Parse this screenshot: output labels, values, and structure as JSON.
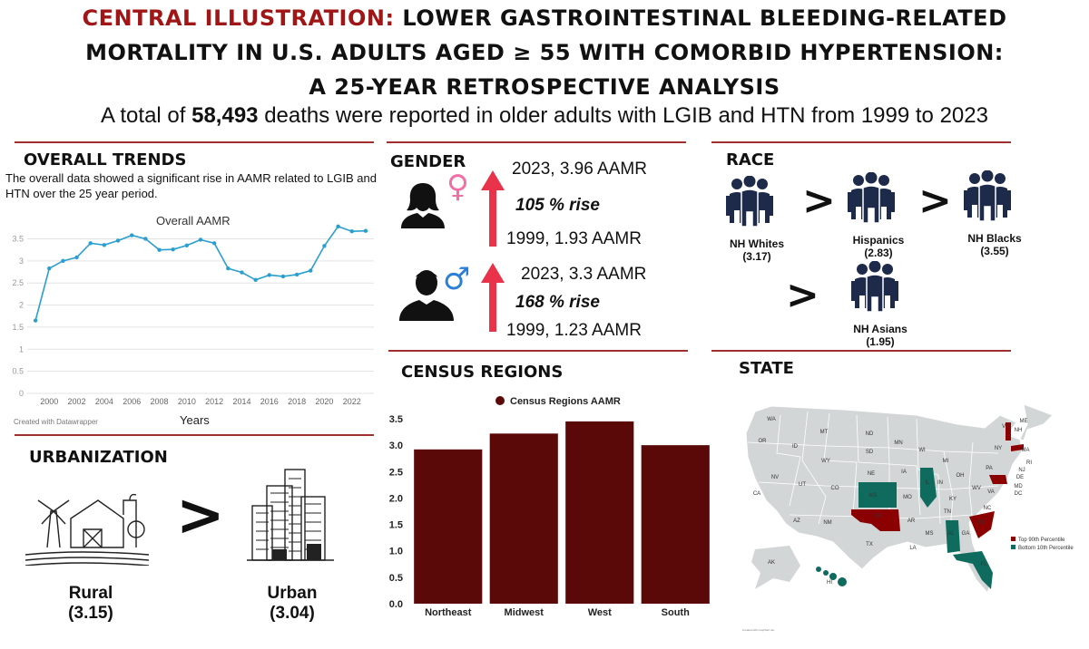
{
  "header": {
    "title_accent": "Central Illustration:",
    "title_line1": "Lower Gastrointestinal Bleeding-Related",
    "title_line2": "Mortality in U.S. Adults Aged ≥ 55 with Comorbid Hypertension:",
    "title_line3": "A 25-Year Retrospective Analysis",
    "subtitle_pre": "A total of",
    "subtitle_count": "58,493",
    "subtitle_post": "deaths were reported in older adults with LGIB and HTN from 1999 to 2023"
  },
  "overall": {
    "section_title": "OVERALL TRENDS",
    "description": "The overall data showed a significant rise in AAMR related to LGIB and HTN over the 25 year period.",
    "credit": "Created with Datawrapper",
    "line_color": "#2a9fcf",
    "chart_data": {
      "type": "line",
      "series": [
        {
          "name": "Overall AAMR",
          "values": [
            1.65,
            2.83,
            3.0,
            3.08,
            3.4,
            3.36,
            3.46,
            3.58,
            3.5,
            3.25,
            3.26,
            3.35,
            3.48,
            3.4,
            2.83,
            2.74,
            2.57,
            2.68,
            2.65,
            2.69,
            2.78,
            3.34,
            3.78,
            3.67,
            3.68
          ]
        }
      ],
      "x": [
        1999,
        2000,
        2001,
        2002,
        2003,
        2004,
        2005,
        2006,
        2007,
        2008,
        2009,
        2010,
        2011,
        2012,
        2013,
        2014,
        2015,
        2016,
        2017,
        2018,
        2019,
        2020,
        2021,
        2022,
        2023
      ],
      "xticks": [
        "2000",
        "2002",
        "2004",
        "2006",
        "2008",
        "2010",
        "2012",
        "2014",
        "2016",
        "2018",
        "2020",
        "2022"
      ],
      "yticks": [
        "0",
        "0.5",
        "1",
        "1.5",
        "2",
        "2.5",
        "3",
        "3.5"
      ],
      "xlabel": "Years",
      "ylim": [
        0,
        3.9
      ]
    }
  },
  "gender": {
    "section_title": "GENDER",
    "arrow_color": "#e8334a",
    "female": {
      "top": "2023, 3.96 AAMR",
      "rise": "105 % rise",
      "bottom": "1999, 1.93 AAMR",
      "symbol": "♀",
      "symbol_color": "#f06fa4"
    },
    "male": {
      "top": "2023, 3.3 AAMR",
      "rise": "168 % rise",
      "bottom": "1999, 1.23 AAMR",
      "symbol": "♂",
      "symbol_color": "#2b7fd6"
    }
  },
  "race": {
    "section_title": "RACE",
    "icon_color": "#1d2a4a",
    "gt": ">",
    "groups": [
      {
        "name": "NH Whites",
        "value": "(3.17)"
      },
      {
        "name": "Hispanics",
        "value": "(2.83)"
      },
      {
        "name": "NH Blacks",
        "value": "(3.55)"
      },
      {
        "name": "NH Asians",
        "value": "(1.95)"
      }
    ]
  },
  "census": {
    "section_title": "CENSUS REGIONS",
    "bar_color": "#5a0808",
    "chart_data": {
      "type": "bar",
      "categories": [
        "Northeast",
        "Midwest",
        "West",
        "South"
      ],
      "series": [
        {
          "name": "Census Regions AAMR",
          "values": [
            2.92,
            3.22,
            3.45,
            3.0
          ]
        }
      ],
      "yticks": [
        "0.0",
        "0.5",
        "1.0",
        "1.5",
        "2.0",
        "2.5",
        "3.0",
        "3.5"
      ],
      "ylim": [
        0,
        3.5
      ],
      "legend_position": "top"
    }
  },
  "state": {
    "section_title": "STATE",
    "legend_top": "Top 90th Percentile",
    "legend_bottom": "Bottom 10th Percentile",
    "credit": "Created with mapchart.net",
    "top_color": "#8b0000",
    "bottom_color": "#0f6b5e",
    "base_color": "#d3d6d6",
    "labels": [
      "WA",
      "OR",
      "CA",
      "NV",
      "ID",
      "MT",
      "WY",
      "UT",
      "AZ",
      "CO",
      "NM",
      "ND",
      "SD",
      "NE",
      "KS",
      "OK",
      "TX",
      "MN",
      "IA",
      "MO",
      "AR",
      "LA",
      "WI",
      "IL",
      "MI",
      "IN",
      "OH",
      "KY",
      "TN",
      "MS",
      "AL",
      "GA",
      "FL",
      "SC",
      "NC",
      "VA",
      "WV",
      "PA",
      "NY",
      "VT",
      "NH",
      "ME",
      "MA",
      "RI",
      "NJ",
      "DE",
      "MD",
      "DC",
      "AK",
      "HI"
    ]
  },
  "urbanization": {
    "section_title": "URBANIZATION",
    "gt": ">",
    "rural_name": "Rural",
    "rural_value": "(3.15)",
    "urban_name": "Urban",
    "urban_value": "(3.04)"
  }
}
